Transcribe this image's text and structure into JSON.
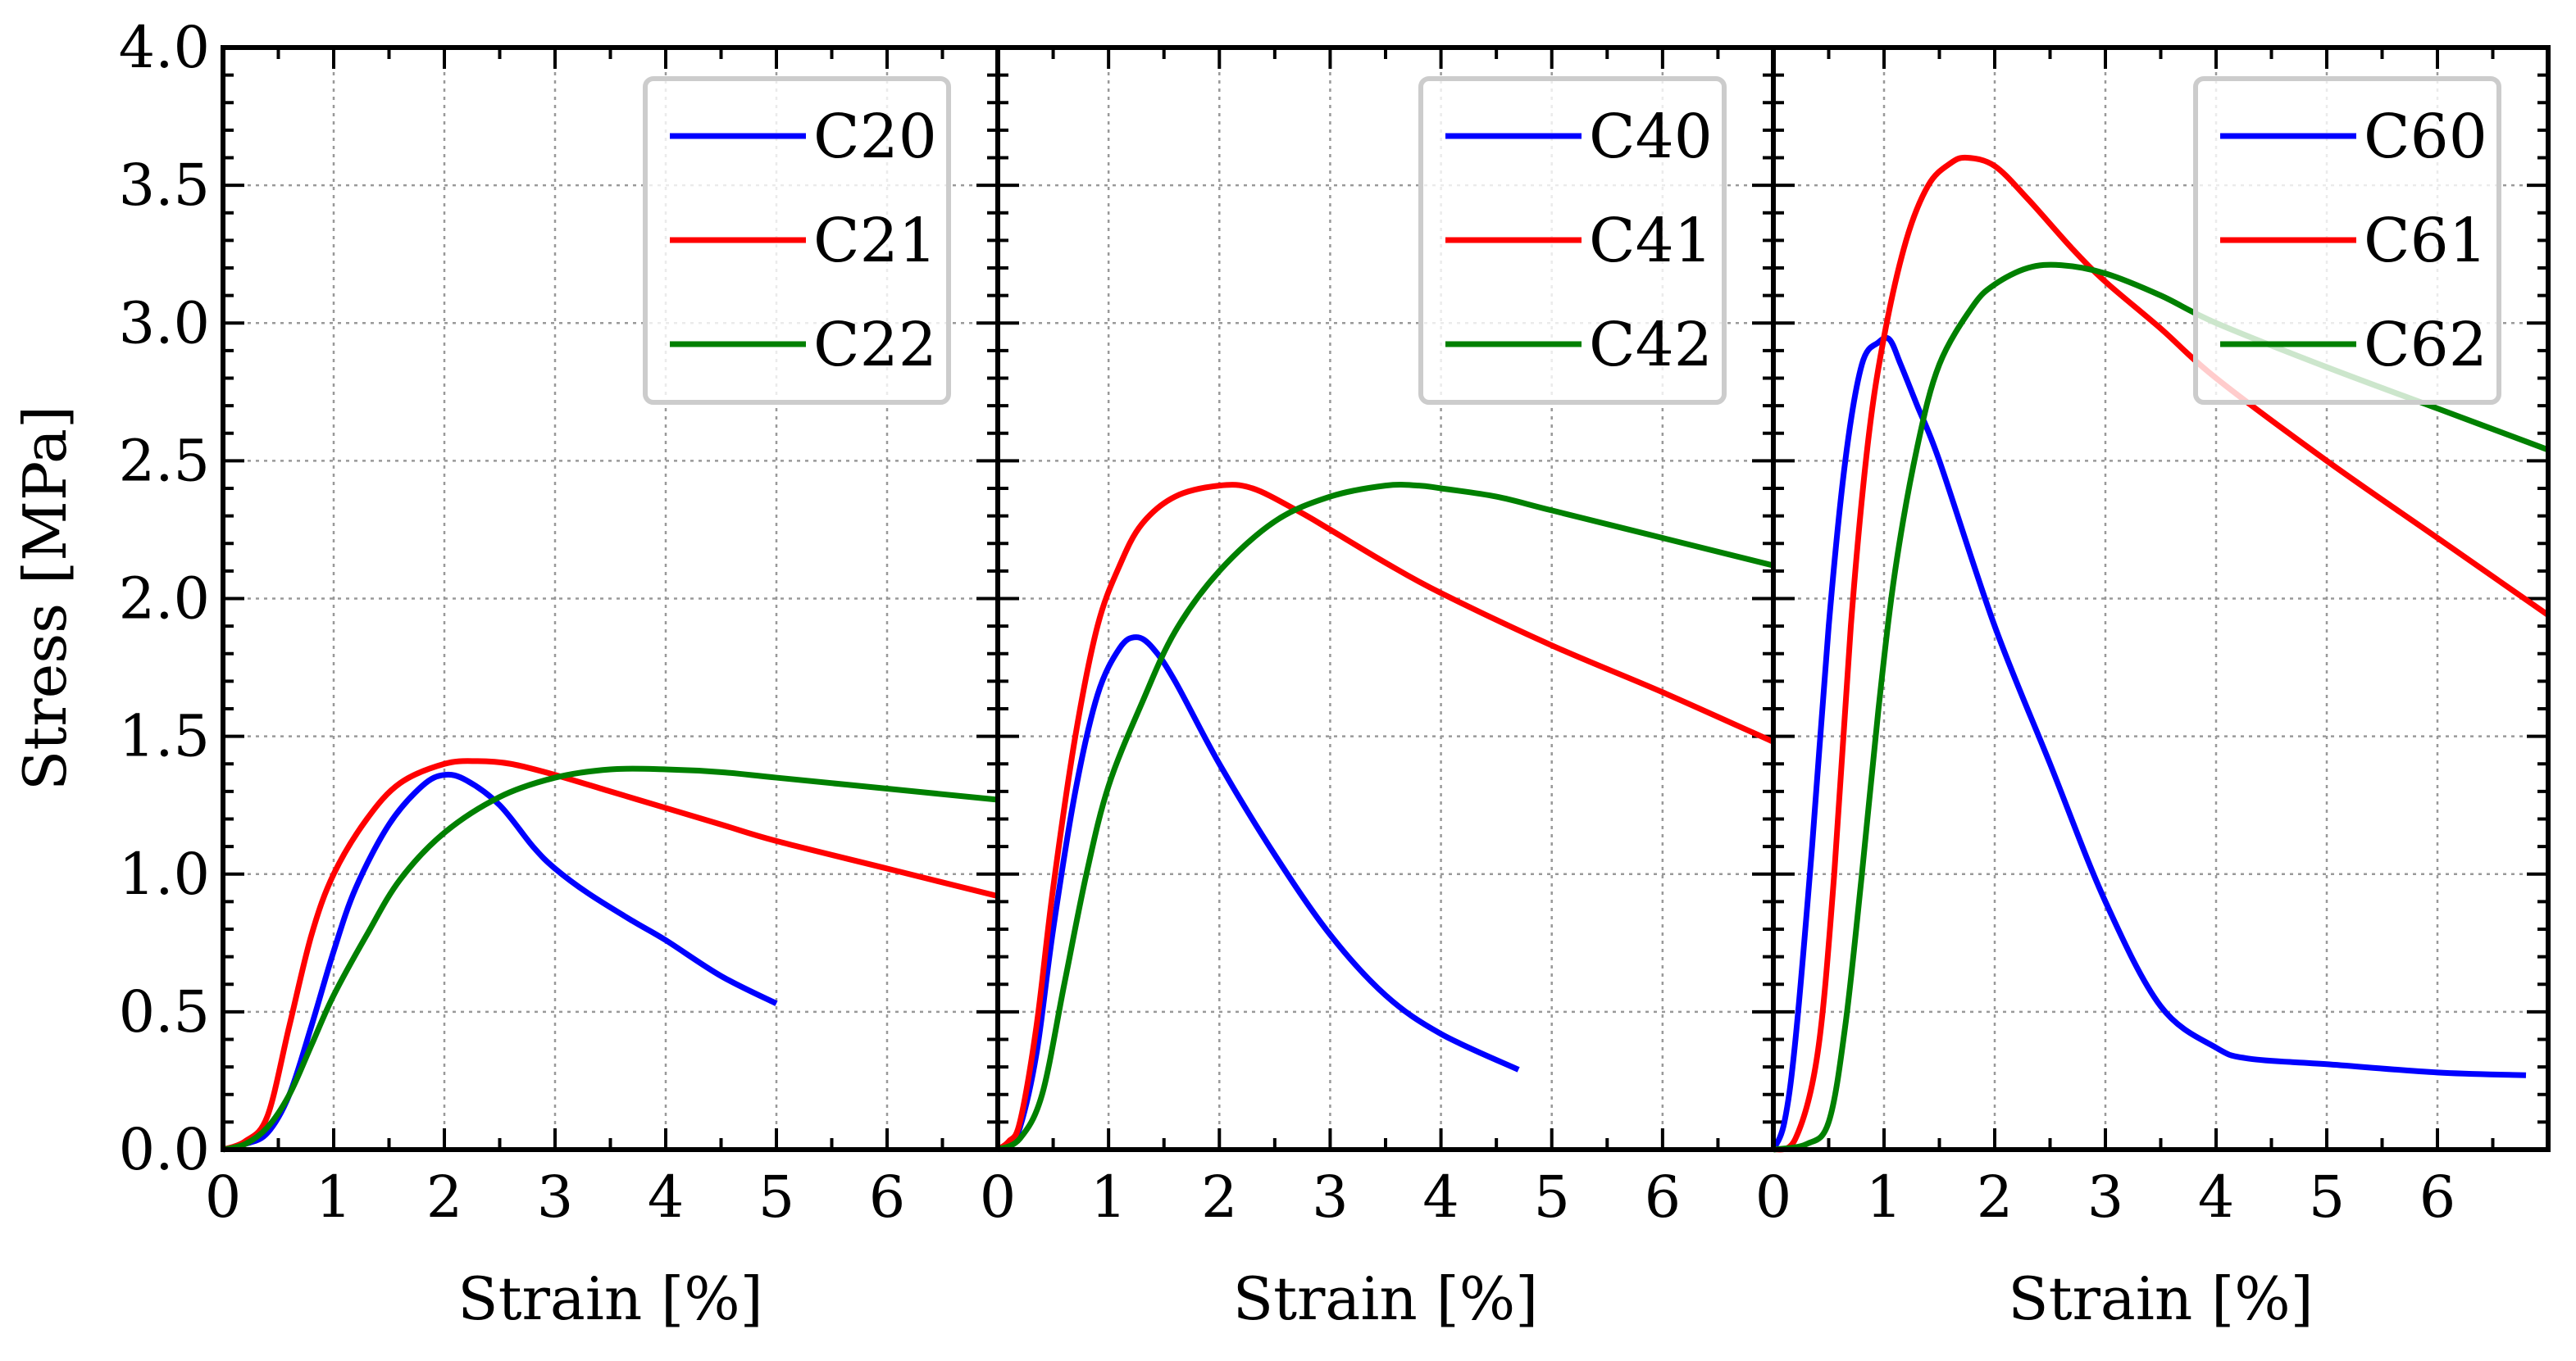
{
  "figure": {
    "ylabel": "Stress [MPa]",
    "xlabel": "Strain [%]",
    "y_ticks": [
      "0.0",
      "0.5",
      "1.0",
      "1.5",
      "2.0",
      "2.5",
      "3.0",
      "3.5",
      "4.0"
    ],
    "x_ticks": [
      "0",
      "1",
      "2",
      "3",
      "4",
      "5",
      "6"
    ],
    "colors": {
      "blue": "#0000ff",
      "red": "#ff0000",
      "green": "#008000",
      "grid": "#999999"
    }
  },
  "chart_data": [
    {
      "type": "line",
      "xlabel": "Strain [%]",
      "ylabel": "Stress [MPa]",
      "xlim": [
        0,
        7
      ],
      "ylim": [
        0,
        4
      ],
      "grid": true,
      "legend_position": "top-right",
      "series": [
        {
          "name": "C20",
          "color": "#0000ff",
          "x": [
            0,
            0.2,
            0.4,
            0.6,
            0.8,
            1.0,
            1.2,
            1.5,
            1.8,
            2.0,
            2.2,
            2.5,
            2.8,
            3.0,
            3.3,
            3.7,
            4.0,
            4.5,
            5.0
          ],
          "y": [
            0,
            0.02,
            0.06,
            0.2,
            0.45,
            0.72,
            0.95,
            1.18,
            1.32,
            1.36,
            1.34,
            1.25,
            1.1,
            1.02,
            0.93,
            0.83,
            0.76,
            0.63,
            0.53
          ]
        },
        {
          "name": "C21",
          "color": "#ff0000",
          "x": [
            0,
            0.2,
            0.4,
            0.6,
            0.8,
            1.0,
            1.3,
            1.6,
            2.0,
            2.3,
            2.6,
            3.0,
            3.5,
            4.0,
            4.5,
            5.0,
            6.0,
            7.0
          ],
          "y": [
            0,
            0.03,
            0.12,
            0.45,
            0.78,
            1.0,
            1.2,
            1.33,
            1.4,
            1.41,
            1.4,
            1.36,
            1.3,
            1.24,
            1.18,
            1.12,
            1.02,
            0.92
          ]
        },
        {
          "name": "C22",
          "color": "#008000",
          "x": [
            0,
            0.2,
            0.4,
            0.6,
            0.8,
            1.0,
            1.3,
            1.6,
            2.0,
            2.5,
            3.0,
            3.5,
            4.0,
            4.5,
            5.0,
            6.0,
            7.0
          ],
          "y": [
            0,
            0.02,
            0.08,
            0.2,
            0.38,
            0.56,
            0.78,
            0.98,
            1.15,
            1.28,
            1.35,
            1.38,
            1.38,
            1.37,
            1.35,
            1.31,
            1.27
          ]
        }
      ]
    },
    {
      "type": "line",
      "xlabel": "Strain [%]",
      "ylabel": "",
      "xlim": [
        0,
        7
      ],
      "ylim": [
        0,
        4
      ],
      "grid": true,
      "legend_position": "top-right",
      "series": [
        {
          "name": "C40",
          "color": "#0000ff",
          "x": [
            0,
            0.1,
            0.2,
            0.35,
            0.5,
            0.7,
            0.9,
            1.1,
            1.25,
            1.4,
            1.6,
            2.0,
            2.5,
            3.0,
            3.5,
            4.0,
            4.7
          ],
          "y": [
            0,
            0.02,
            0.08,
            0.35,
            0.8,
            1.3,
            1.65,
            1.82,
            1.86,
            1.82,
            1.7,
            1.4,
            1.07,
            0.78,
            0.56,
            0.42,
            0.29
          ]
        },
        {
          "name": "C41",
          "color": "#ff0000",
          "x": [
            0,
            0.1,
            0.2,
            0.35,
            0.5,
            0.7,
            0.9,
            1.1,
            1.3,
            1.6,
            2.0,
            2.3,
            2.7,
            3.0,
            3.5,
            4.0,
            5.0,
            6.0,
            7.0
          ],
          "y": [
            0,
            0.03,
            0.1,
            0.45,
            0.95,
            1.5,
            1.9,
            2.12,
            2.27,
            2.37,
            2.41,
            2.4,
            2.32,
            2.25,
            2.13,
            2.02,
            1.83,
            1.66,
            1.48
          ]
        },
        {
          "name": "C42",
          "color": "#008000",
          "x": [
            0,
            0.2,
            0.4,
            0.6,
            0.8,
            1.0,
            1.3,
            1.6,
            2.0,
            2.5,
            3.0,
            3.5,
            3.8,
            4.0,
            4.5,
            5.0,
            6.0,
            7.0
          ],
          "y": [
            0,
            0.04,
            0.2,
            0.6,
            1.0,
            1.32,
            1.62,
            1.88,
            2.1,
            2.28,
            2.37,
            2.41,
            2.41,
            2.4,
            2.37,
            2.32,
            2.22,
            2.12
          ]
        }
      ]
    },
    {
      "type": "line",
      "xlabel": "Strain [%]",
      "ylabel": "",
      "xlim": [
        0,
        7
      ],
      "ylim": [
        0,
        4
      ],
      "grid": true,
      "legend_position": "top-right",
      "series": [
        {
          "name": "C60",
          "color": "#0000ff",
          "x": [
            0,
            0.1,
            0.2,
            0.35,
            0.5,
            0.65,
            0.8,
            0.95,
            1.05,
            1.15,
            1.3,
            1.5,
            2.0,
            2.5,
            3.0,
            3.5,
            4.0,
            4.3,
            5.0,
            6.0,
            6.8
          ],
          "y": [
            0,
            0.1,
            0.4,
            1.1,
            1.9,
            2.5,
            2.85,
            2.93,
            2.94,
            2.85,
            2.7,
            2.5,
            1.9,
            1.4,
            0.9,
            0.52,
            0.37,
            0.33,
            0.31,
            0.28,
            0.27
          ]
        },
        {
          "name": "C61",
          "color": "#ff0000",
          "x": [
            0,
            0.2,
            0.4,
            0.55,
            0.7,
            0.85,
            1.0,
            1.2,
            1.4,
            1.6,
            1.75,
            2.0,
            2.3,
            2.7,
            3.0,
            3.5,
            4.0,
            5.0,
            6.0,
            7.0
          ],
          "y": [
            0,
            0.04,
            0.35,
            1.0,
            1.9,
            2.55,
            2.95,
            3.3,
            3.5,
            3.58,
            3.6,
            3.57,
            3.45,
            3.27,
            3.15,
            2.98,
            2.8,
            2.5,
            2.22,
            1.94
          ]
        },
        {
          "name": "C62",
          "color": "#008000",
          "x": [
            0,
            0.3,
            0.5,
            0.65,
            0.8,
            0.95,
            1.1,
            1.3,
            1.5,
            1.8,
            2.0,
            2.3,
            2.6,
            3.0,
            3.5,
            4.0,
            5.0,
            6.0,
            7.0
          ],
          "y": [
            0,
            0.02,
            0.1,
            0.45,
            1.0,
            1.6,
            2.1,
            2.55,
            2.85,
            3.06,
            3.14,
            3.2,
            3.21,
            3.18,
            3.1,
            3.0,
            2.84,
            2.69,
            2.54
          ]
        }
      ]
    }
  ]
}
